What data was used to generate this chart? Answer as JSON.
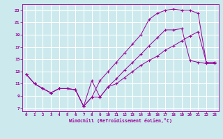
{
  "xlabel": "Windchill (Refroidissement éolien,°C)",
  "background_color": "#cce9ed",
  "grid_color": "#ffffff",
  "line_color": "#990099",
  "xlim": [
    -0.5,
    23.5
  ],
  "ylim": [
    6.5,
    24
  ],
  "xticks": [
    0,
    1,
    2,
    3,
    4,
    5,
    6,
    7,
    8,
    9,
    10,
    11,
    12,
    13,
    14,
    15,
    16,
    17,
    18,
    19,
    20,
    21,
    22,
    23
  ],
  "yticks": [
    7,
    9,
    11,
    13,
    15,
    17,
    19,
    21,
    23
  ],
  "line1_x": [
    0,
    1,
    2,
    3,
    4,
    5,
    6,
    7,
    8,
    9,
    10,
    11,
    12,
    13,
    14,
    15,
    16,
    17,
    18,
    19,
    20,
    21,
    22,
    23
  ],
  "line1_y": [
    12.5,
    11.0,
    10.2,
    9.5,
    10.2,
    10.2,
    10.0,
    7.3,
    8.8,
    11.5,
    13.0,
    14.5,
    16.0,
    17.5,
    19.0,
    21.5,
    22.5,
    23.0,
    23.2,
    23.0,
    23.0,
    22.5,
    14.5,
    14.5
  ],
  "line2_x": [
    0,
    1,
    2,
    3,
    4,
    5,
    6,
    7,
    8,
    9,
    10,
    11,
    12,
    13,
    14,
    15,
    16,
    17,
    18,
    19,
    20,
    21,
    22,
    23
  ],
  "line2_y": [
    12.5,
    11.0,
    10.2,
    9.5,
    10.2,
    10.2,
    10.0,
    7.3,
    11.5,
    8.8,
    10.5,
    11.8,
    13.2,
    14.5,
    15.8,
    17.2,
    18.5,
    19.8,
    19.8,
    20.0,
    14.8,
    14.5,
    14.3,
    14.3
  ],
  "line3_x": [
    0,
    1,
    2,
    3,
    4,
    5,
    6,
    7,
    8,
    9,
    10,
    11,
    12,
    13,
    14,
    15,
    16,
    17,
    18,
    19,
    20,
    21,
    22,
    23
  ],
  "line3_y": [
    12.5,
    11.0,
    10.2,
    9.5,
    10.2,
    10.2,
    10.0,
    7.3,
    8.8,
    8.8,
    10.5,
    11.0,
    12.0,
    13.0,
    14.0,
    14.8,
    15.5,
    16.5,
    17.2,
    18.0,
    18.8,
    19.5,
    14.5,
    14.5
  ]
}
